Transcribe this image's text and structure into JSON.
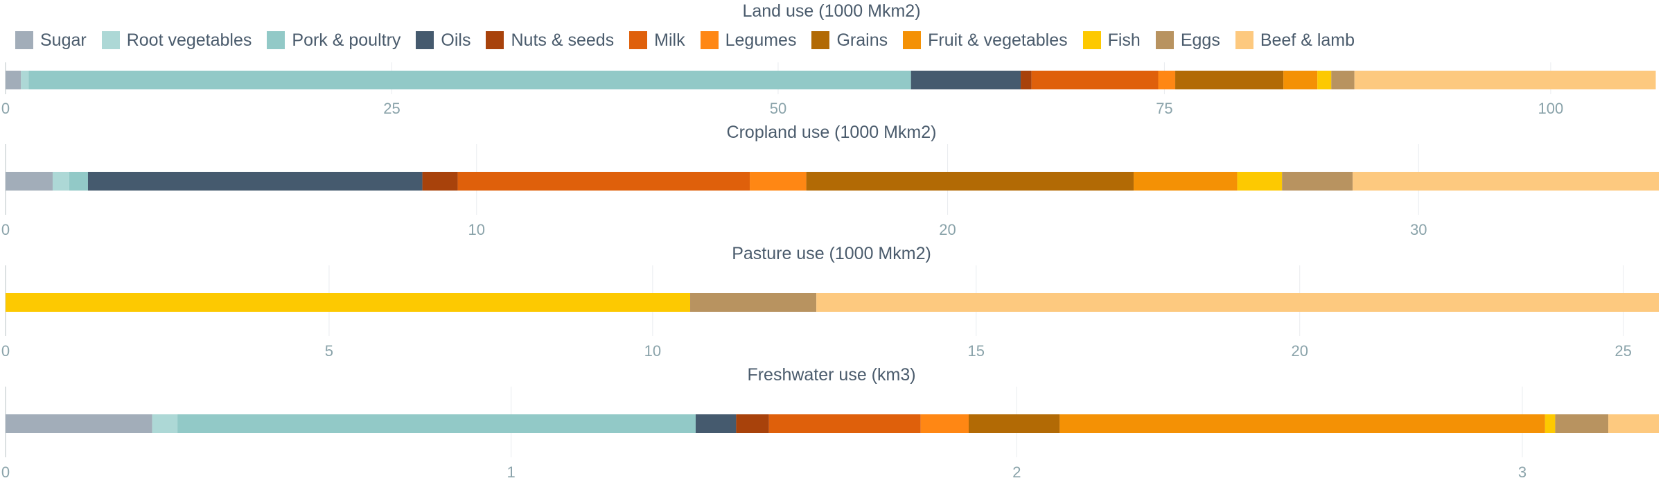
{
  "colors": {
    "Sugar": "#a2adb9",
    "Root vegetables": "#add8d6",
    "Pork & poultry": "#92c9c7",
    "Oils": "#455a6e",
    "Nuts & seeds": "#a8420b",
    "Milk": "#df600b",
    "Legumes": "#ff8714",
    "Grains": "#b26a05",
    "Fruit & vegetables": "#f49105",
    "Fish": "#fdc901",
    "Eggs": "#b89360",
    "Beef & lamb": "#fdc97f"
  },
  "chart_data": [
    {
      "type": "bar",
      "orientation": "horizontal",
      "stacked": true,
      "title": "Land use (1000 Mkm2)",
      "xlim": [
        0,
        107
      ],
      "xticks": [
        0,
        25,
        50,
        75,
        100
      ],
      "series": [
        {
          "name": "Sugar",
          "values": [
            1.0
          ]
        },
        {
          "name": "Root vegetables",
          "values": [
            0.5
          ]
        },
        {
          "name": "Pork & poultry",
          "values": [
            57.1
          ]
        },
        {
          "name": "Oils",
          "values": [
            7.1
          ]
        },
        {
          "name": "Nuts & seeds",
          "values": [
            0.7
          ]
        },
        {
          "name": "Milk",
          "values": [
            8.2
          ]
        },
        {
          "name": "Legumes",
          "values": [
            1.1
          ]
        },
        {
          "name": "Grains",
          "values": [
            7.0
          ]
        },
        {
          "name": "Fruit & vegetables",
          "values": [
            2.2
          ]
        },
        {
          "name": "Fish",
          "values": [
            0.9
          ]
        },
        {
          "name": "Eggs",
          "values": [
            1.5
          ]
        },
        {
          "name": "Beef & lamb",
          "values": [
            19.5
          ]
        }
      ]
    },
    {
      "type": "bar",
      "orientation": "horizontal",
      "stacked": true,
      "title": "Cropland use (1000 Mkm2)",
      "xlim": [
        0,
        35.1
      ],
      "xticks": [
        0,
        10,
        20,
        30
      ],
      "series": [
        {
          "name": "Sugar",
          "values": [
            1.0
          ]
        },
        {
          "name": "Root vegetables",
          "values": [
            0.35
          ]
        },
        {
          "name": "Pork & poultry",
          "values": [
            0.4
          ]
        },
        {
          "name": "Oils",
          "values": [
            7.1
          ]
        },
        {
          "name": "Nuts & seeds",
          "values": [
            0.75
          ]
        },
        {
          "name": "Milk",
          "values": [
            6.2
          ]
        },
        {
          "name": "Legumes",
          "values": [
            1.2
          ]
        },
        {
          "name": "Grains",
          "values": [
            6.95
          ]
        },
        {
          "name": "Fruit & vegetables",
          "values": [
            2.2
          ]
        },
        {
          "name": "Fish",
          "values": [
            0.95
          ]
        },
        {
          "name": "Eggs",
          "values": [
            1.5
          ]
        },
        {
          "name": "Beef & lamb",
          "values": [
            6.5
          ]
        }
      ]
    },
    {
      "type": "bar",
      "orientation": "horizontal",
      "stacked": true,
      "title": "Pasture use (1000 Mkm2)",
      "xlim": [
        0,
        25.55
      ],
      "xticks": [
        0,
        5,
        10,
        15,
        20,
        25
      ],
      "series": [
        {
          "name": "Fish",
          "values": [
            10.58
          ]
        },
        {
          "name": "Eggs",
          "values": [
            1.95
          ]
        },
        {
          "name": "Beef & lamb",
          "values": [
            13.02
          ]
        }
      ]
    },
    {
      "type": "bar",
      "orientation": "horizontal",
      "stacked": true,
      "title": "Freshwater use (km3)",
      "xlim": [
        0,
        3.27
      ],
      "xticks": [
        0,
        1,
        2,
        3
      ],
      "series": [
        {
          "name": "Sugar",
          "values": [
            0.29
          ]
        },
        {
          "name": "Root vegetables",
          "values": [
            0.05
          ]
        },
        {
          "name": "Pork & poultry",
          "values": [
            1.025
          ]
        },
        {
          "name": "Oils",
          "values": [
            0.08
          ]
        },
        {
          "name": "Nuts & seeds",
          "values": [
            0.065
          ]
        },
        {
          "name": "Milk",
          "values": [
            0.3
          ]
        },
        {
          "name": "Legumes",
          "values": [
            0.095
          ]
        },
        {
          "name": "Grains",
          "values": [
            0.18
          ]
        },
        {
          "name": "Fruit & vegetables",
          "values": [
            0.96
          ]
        },
        {
          "name": "Fish",
          "values": [
            0.02
          ]
        },
        {
          "name": "Eggs",
          "values": [
            0.105
          ]
        },
        {
          "name": "Beef & lamb",
          "values": [
            0.1
          ]
        }
      ]
    }
  ],
  "legend": {
    "items": [
      "Sugar",
      "Root vegetables",
      "Pork & poultry",
      "Oils",
      "Nuts & seeds",
      "Milk",
      "Legumes",
      "Grains",
      "Fruit & vegetables",
      "Fish",
      "Eggs",
      "Beef & lamb"
    ]
  }
}
